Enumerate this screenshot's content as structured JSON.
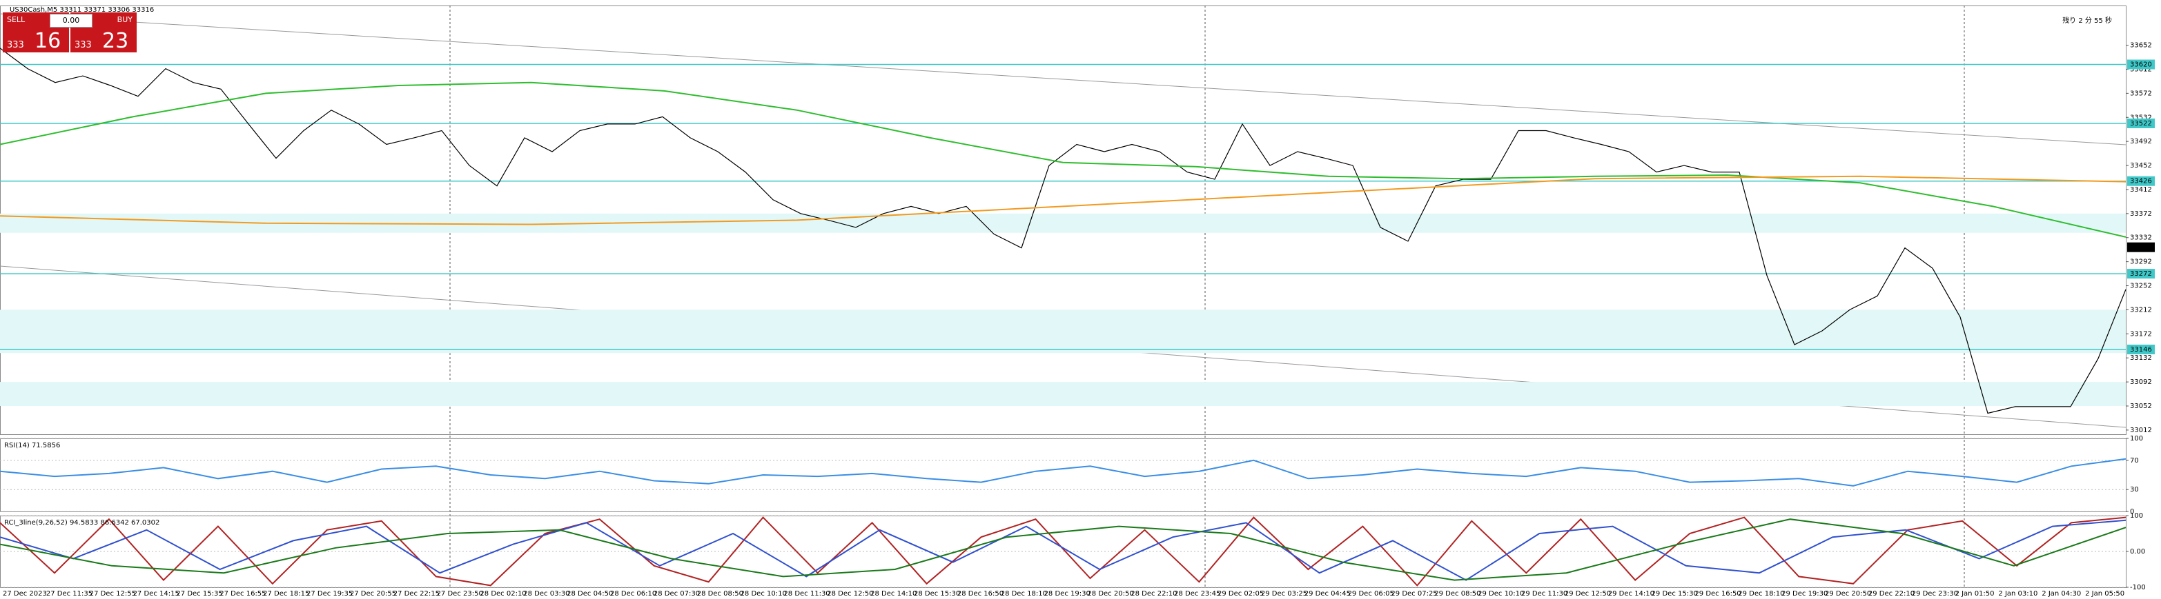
{
  "header": {
    "symbol_info": "US30Cash,M5  33311 33371 33306 33316",
    "countdown": "残り 2 分 55 秒"
  },
  "trade_panel": {
    "sell": "SELL",
    "buy": "BUY",
    "lots": "0.00",
    "sell_prefix": "333",
    "sell_price": "16",
    "buy_prefix": "333",
    "buy_price": "23"
  },
  "time_axis": [
    "27 Dec 2023",
    "27 Dec 11:35",
    "27 Dec 12:55",
    "27 Dec 14:15",
    "27 Dec 15:35",
    "27 Dec 16:55",
    "27 Dec 18:15",
    "27 Dec 19:35",
    "27 Dec 20:55",
    "27 Dec 22:15",
    "27 Dec 23:50",
    "28 Dec 02:10",
    "28 Dec 03:30",
    "28 Dec 04:50",
    "28 Dec 06:10",
    "28 Dec 07:30",
    "28 Dec 08:50",
    "28 Dec 10:10",
    "28 Dec 11:30",
    "28 Dec 12:50",
    "28 Dec 14:10",
    "28 Dec 15:30",
    "28 Dec 16:50",
    "28 Dec 18:10",
    "28 Dec 19:30",
    "28 Dec 20:50",
    "28 Dec 22:10",
    "28 Dec 23:45",
    "29 Dec 02:05",
    "29 Dec 03:25",
    "29 Dec 04:45",
    "29 Dec 06:05",
    "29 Dec 07:25",
    "29 Dec 08:50",
    "29 Dec 10:10",
    "29 Dec 11:30",
    "29 Dec 12:50",
    "29 Dec 14:10",
    "29 Dec 15:30",
    "29 Dec 16:50",
    "29 Dec 18:10",
    "29 Dec 19:30",
    "29 Dec 20:50",
    "29 Dec 22:10",
    "29 Dec 23:30",
    "2 Jan 01:50",
    "2 Jan 03:10",
    "2 Jan 04:30",
    "2 Jan 05:50"
  ],
  "chart_data": [
    {
      "type": "line",
      "ylim": [
        33005,
        33718
      ],
      "yticks": [
        33652,
        33612,
        33572,
        33532,
        33492,
        33452,
        33412,
        33372,
        33332,
        33292,
        33252,
        33212,
        33172,
        33132,
        33092,
        33052,
        33012
      ],
      "levels": [
        33620,
        33522,
        33426,
        33272,
        33146
      ],
      "level_color": "#40c8c8",
      "zones": [
        [
          33340,
          33372
        ],
        [
          33140,
          33212
        ],
        [
          33052,
          33092
        ]
      ],
      "zone_color": "#e2f7f7",
      "current_price": 33316,
      "series": [
        {
          "color": "#000000",
          "values": [
            33647,
            33613,
            33590,
            33601,
            33585,
            33567,
            33613,
            33590,
            33579,
            33521,
            33464,
            33510,
            33544,
            33521,
            33487,
            33498,
            33510,
            33452,
            33418,
            33498,
            33475,
            33510,
            33521,
            33521,
            33533,
            33498,
            33475,
            33441,
            33395,
            33372,
            33361,
            33349,
            33372,
            33384,
            33372,
            33384,
            33338,
            33315,
            33452,
            33487,
            33475,
            33487,
            33475,
            33441,
            33429,
            33521,
            33452,
            33475,
            33464,
            33452,
            33349,
            33326,
            33418,
            33429,
            33429,
            33510,
            33510,
            33498,
            33487,
            33475,
            33441,
            33452,
            33441,
            33441,
            33269,
            33154,
            33177,
            33212,
            33235,
            33315,
            33281,
            33200,
            33040,
            33051,
            33051,
            33051,
            33131,
            33246
          ]
        },
        {
          "color": "#2ebd2e",
          "values": [
            33487,
            33533,
            33572,
            33585,
            33590,
            33576,
            33544,
            33498,
            33457,
            33450,
            33434,
            33430,
            33434,
            33436,
            33423,
            33384,
            33333
          ]
        },
        {
          "color": "#f39a1e",
          "values": [
            33368,
            33356,
            33354,
            33361,
            33384,
            33407,
            33430,
            33434,
            33425
          ]
        }
      ]
    },
    {
      "type": "line",
      "label": "RSI(14) 71.5856",
      "ylim": [
        0,
        100
      ],
      "yticks": [
        100,
        70,
        30,
        0
      ],
      "series": [
        {
          "color": "#3a8ee6",
          "values": [
            55,
            48,
            52,
            60,
            45,
            55,
            40,
            58,
            62,
            50,
            45,
            55,
            42,
            38,
            50,
            48,
            52,
            45,
            40,
            55,
            62,
            48,
            55,
            70,
            45,
            50,
            58,
            52,
            48,
            60,
            55,
            40,
            42,
            45,
            35,
            55,
            48,
            40,
            62,
            72
          ]
        }
      ]
    },
    {
      "type": "line",
      "label": "RCI_3line(9,26,52) 94.5833 86.6342 67.0302",
      "ylim": [
        -100,
        100
      ],
      "yticks": [
        100,
        {
          "value": 0,
          "label": "0.00"
        },
        -100
      ],
      "series": [
        {
          "color": "#b22222",
          "values": [
            80,
            -60,
            90,
            -80,
            70,
            -90,
            60,
            85,
            -70,
            -95,
            50,
            90,
            -40,
            -85,
            95,
            -60,
            80,
            -90,
            40,
            90,
            -75,
            60,
            -85,
            95,
            -50,
            70,
            -95,
            85,
            -60,
            90,
            -80,
            50,
            95,
            -70,
            -90,
            60,
            85,
            -40,
            80,
            95
          ]
        },
        {
          "color": "#3050d0",
          "values": [
            40,
            -20,
            60,
            -50,
            30,
            70,
            -60,
            20,
            80,
            -40,
            50,
            -70,
            60,
            -30,
            70,
            -50,
            40,
            80,
            -60,
            30,
            -80,
            50,
            70,
            -40,
            -60,
            40,
            60,
            -20,
            70,
            87
          ]
        },
        {
          "color": "#1a7a1a",
          "values": [
            20,
            -40,
            -60,
            10,
            50,
            60,
            -20,
            -70,
            -50,
            40,
            70,
            50,
            -30,
            -80,
            -60,
            20,
            90,
            50,
            -40,
            67
          ]
        }
      ]
    }
  ]
}
